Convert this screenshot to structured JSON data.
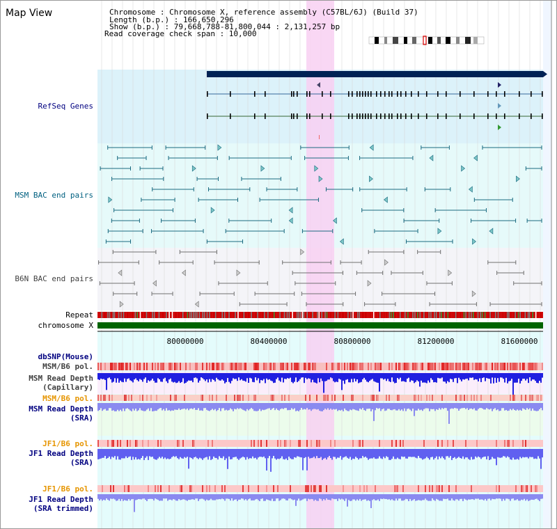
{
  "view": {
    "title": "Map View"
  },
  "info": {
    "line1": "Chromosome      : Chromosome X, reference assembly (C57BL/6J) (Build 37)",
    "line2": "Length (b.p.) : 166,650,296",
    "line3": "Show (b.p.) : 79,668,788-81,800,044 : 2,131,257 bp",
    "line4": "Read coverage check span : 10,000"
  },
  "tracks": {
    "refseq": "RefSeq Genes",
    "msm_bac": "MSM BAC end pairs",
    "b6n_bac": "B6N BAC end pairs",
    "repeat": "Repeat",
    "chromosome": "chromosome X",
    "dbsnp": "dbSNP(Mouse)",
    "msm_b6_pol_1": "MSM/B6 pol.",
    "msm_depth_cap_1": "MSM Read Depth",
    "msm_depth_cap_2": "(Capillary)",
    "msm_b6_pol_2": "MSM/B6 pol.",
    "msm_depth_sra_1": "MSM Read Depth",
    "msm_depth_sra_2": "(SRA)",
    "jf1_b6_pol_1": "JF1/B6 pol.",
    "jf1_depth_sra_1": "JF1 Read Depth",
    "jf1_depth_sra_2": "(SRA)",
    "jf1_b6_pol_2": "JF1/B6 pol.",
    "jf1_depth_trim_1": "JF1 Read Depth",
    "jf1_depth_trim_2": "(SRA trimmed)"
  },
  "axis": {
    "ticks": [
      "80000000",
      "80400000",
      "80800000",
      "81200000",
      "81600000"
    ]
  },
  "colors": {
    "label_blue": "#000080",
    "label_teal": "#006080",
    "label_gray": "#404040",
    "label_orange": "#e69500",
    "refseq_bg": "#dcf2fa",
    "msm_bg": "#e6fafa",
    "b6n_bg": "#f4f4f8",
    "highlight": "#f8d8f4",
    "gene_bar": "#002255",
    "chromosome": "#006400"
  }
}
